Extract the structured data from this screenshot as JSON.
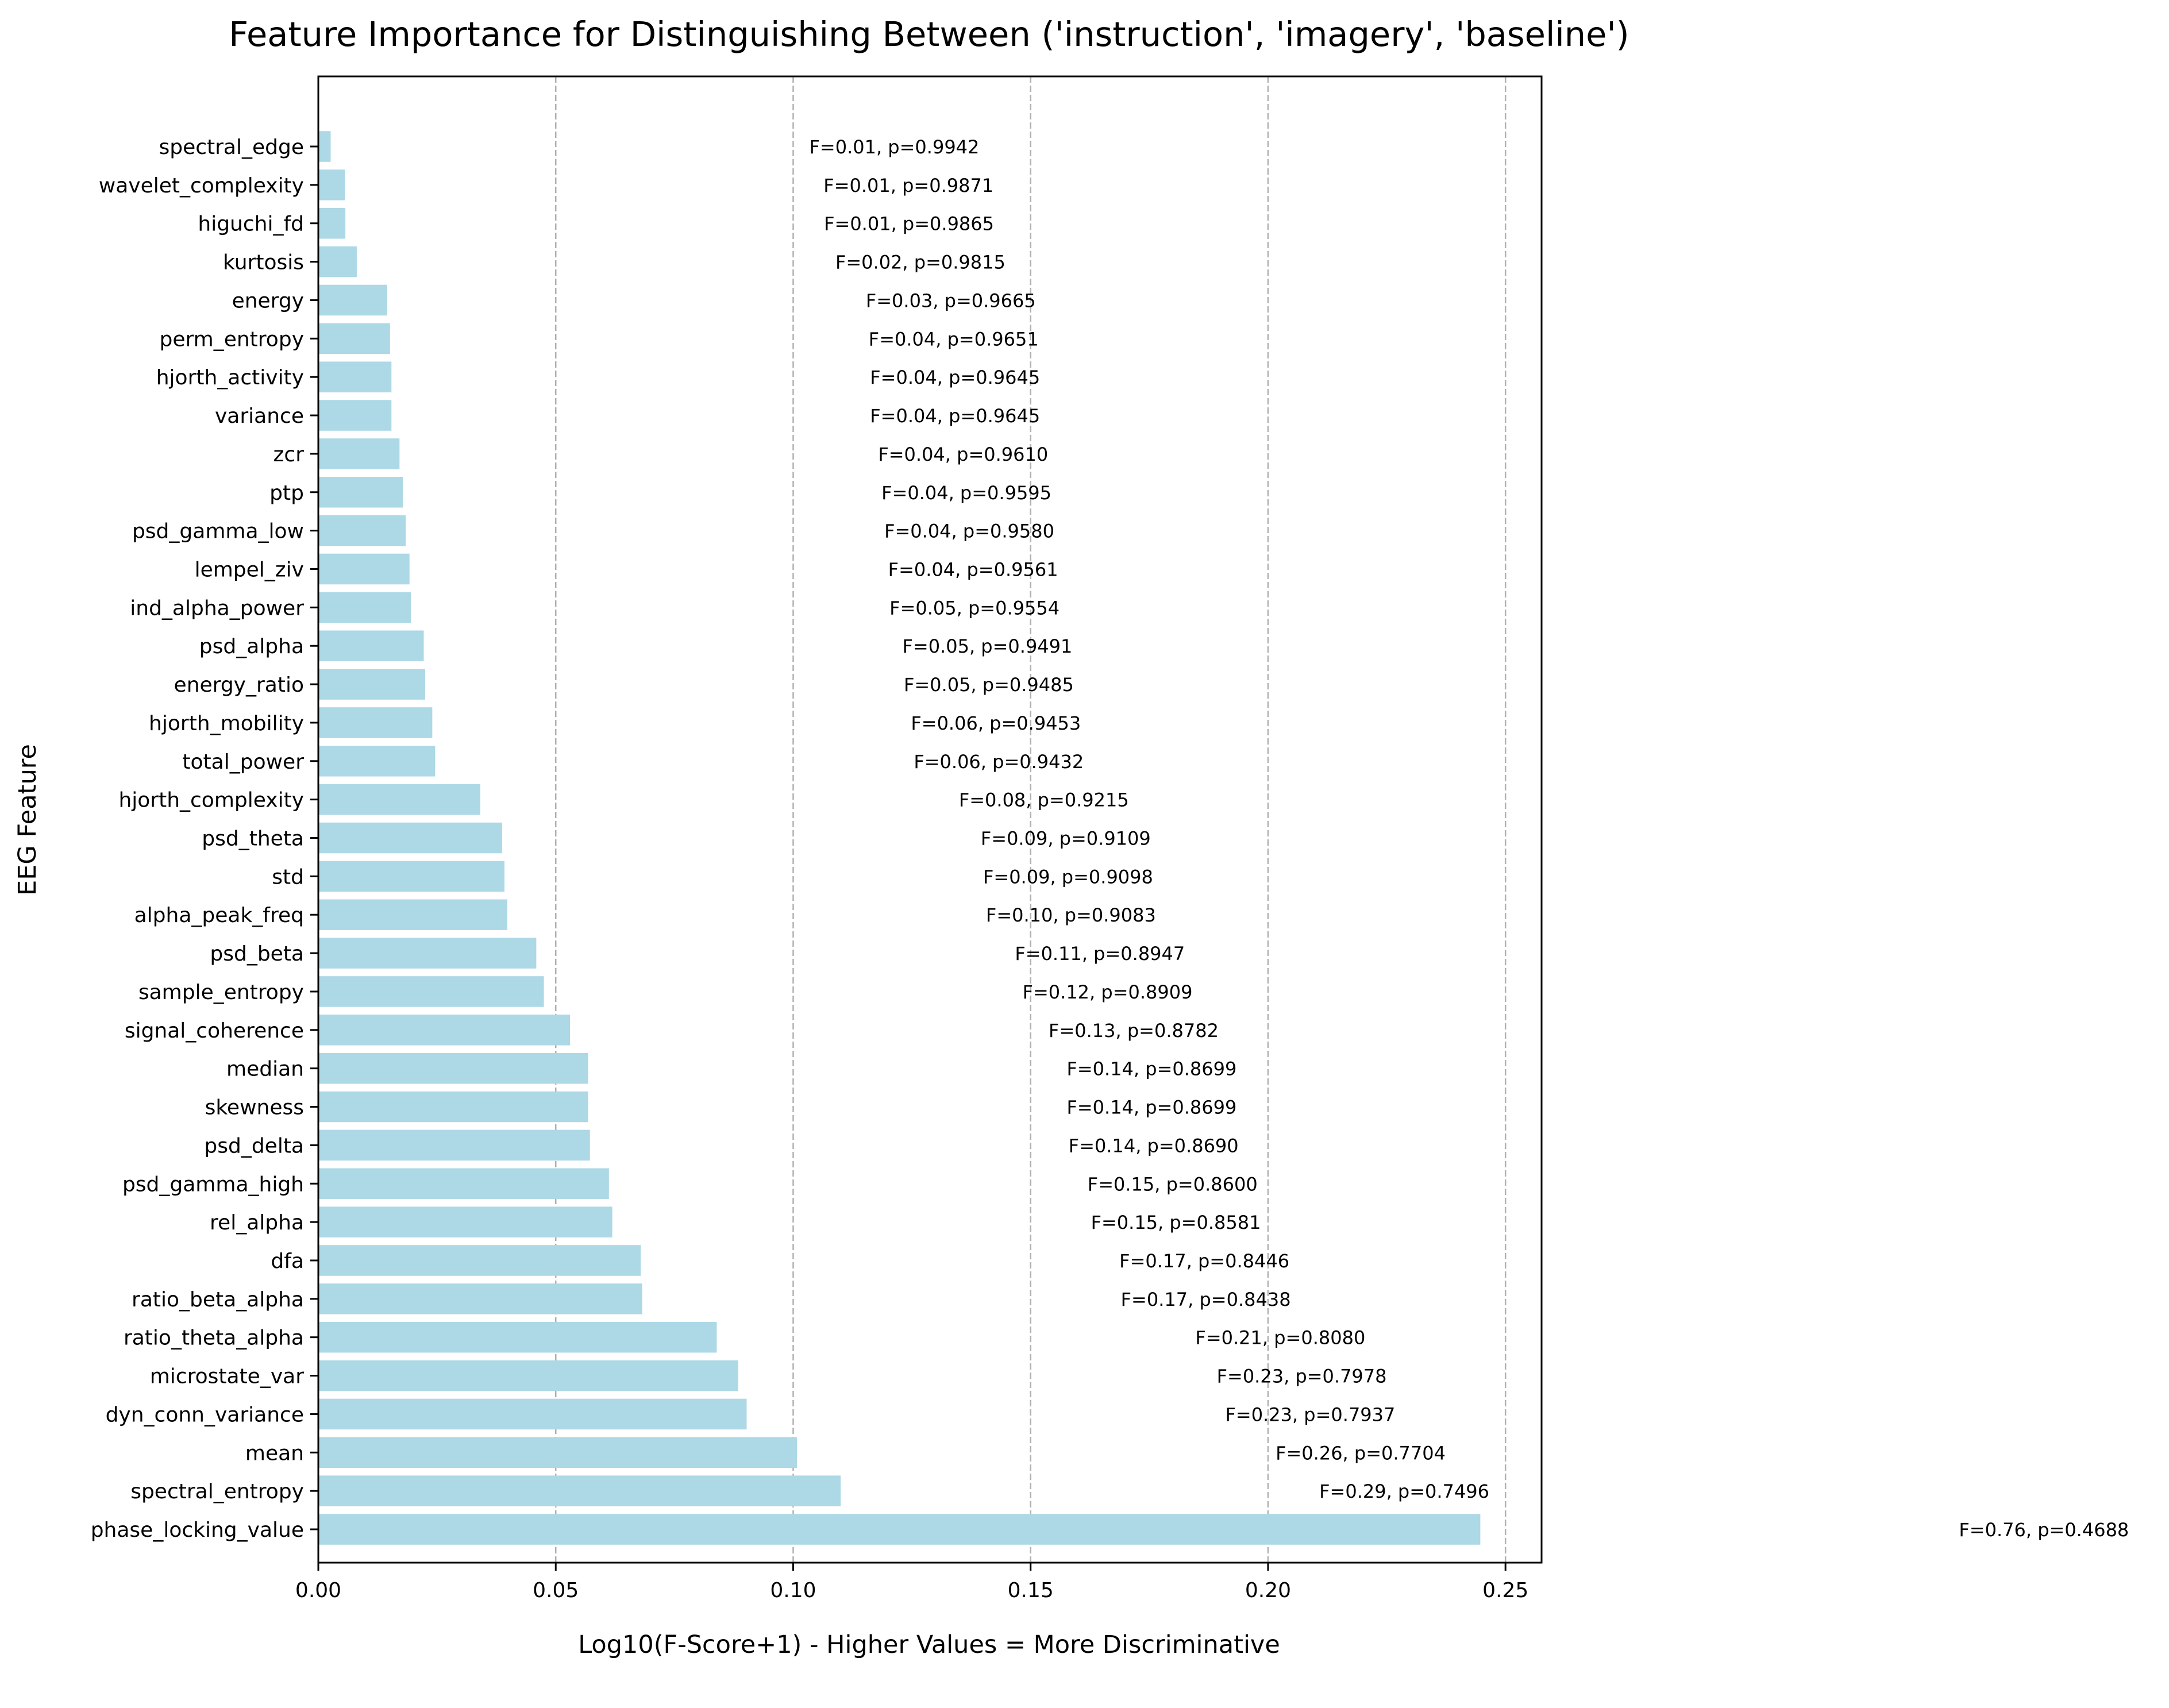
{
  "chart_data": {
    "type": "bar",
    "orientation": "horizontal",
    "title": "Feature Importance for Distinguishing Between ('instruction', 'imagery', 'baseline')",
    "xlabel": "Log10(F-Score+1) - Higher Values = More Discriminative",
    "ylabel": "EEG Feature",
    "xlim": [
      0,
      0.2576
    ],
    "x_ticks": [
      "0.00",
      "0.05",
      "0.10",
      "0.15",
      "0.20",
      "0.25"
    ],
    "grid": "x-dashed",
    "bar_color": "#add8e6",
    "categories": [
      "spectral_edge",
      "wavelet_complexity",
      "higuchi_fd",
      "kurtosis",
      "energy",
      "perm_entropy",
      "hjorth_activity",
      "variance",
      "zcr",
      "ptp",
      "psd_gamma_low",
      "lempel_ziv",
      "ind_alpha_power",
      "psd_alpha",
      "energy_ratio",
      "hjorth_mobility",
      "total_power",
      "hjorth_complexity",
      "psd_theta",
      "std",
      "alpha_peak_freq",
      "psd_beta",
      "sample_entropy",
      "signal_coherence",
      "median",
      "skewness",
      "psd_delta",
      "psd_gamma_high",
      "rel_alpha",
      "dfa",
      "ratio_beta_alpha",
      "ratio_theta_alpha",
      "microstate_var",
      "dyn_conn_variance",
      "mean",
      "spectral_entropy",
      "phase_locking_value"
    ],
    "values": [
      0.0026,
      0.0056,
      0.0057,
      0.0081,
      0.0145,
      0.0151,
      0.0154,
      0.0154,
      0.0171,
      0.0178,
      0.0184,
      0.0192,
      0.0195,
      0.0222,
      0.0225,
      0.024,
      0.0246,
      0.0341,
      0.0387,
      0.0392,
      0.0398,
      0.0459,
      0.0475,
      0.053,
      0.0568,
      0.0568,
      0.0572,
      0.0612,
      0.0619,
      0.0679,
      0.0682,
      0.0839,
      0.0884,
      0.0902,
      0.1008,
      0.11,
      0.2447
    ],
    "annotations": [
      "F=0.01, p=0.9942",
      "F=0.01, p=0.9871",
      "F=0.01, p=0.9865",
      "F=0.02, p=0.9815",
      "F=0.03, p=0.9665",
      "F=0.04, p=0.9651",
      "F=0.04, p=0.9645",
      "F=0.04, p=0.9645",
      "F=0.04, p=0.9610",
      "F=0.04, p=0.9595",
      "F=0.04, p=0.9580",
      "F=0.04, p=0.9561",
      "F=0.05, p=0.9554",
      "F=0.05, p=0.9491",
      "F=0.05, p=0.9485",
      "F=0.06, p=0.9453",
      "F=0.06, p=0.9432",
      "F=0.08, p=0.9215",
      "F=0.09, p=0.9109",
      "F=0.09, p=0.9098",
      "F=0.10, p=0.9083",
      "F=0.11, p=0.8947",
      "F=0.12, p=0.8909",
      "F=0.13, p=0.8782",
      "F=0.14, p=0.8699",
      "F=0.14, p=0.8699",
      "F=0.14, p=0.8690",
      "F=0.15, p=0.8600",
      "F=0.15, p=0.8581",
      "F=0.17, p=0.8446",
      "F=0.17, p=0.8438",
      "F=0.21, p=0.8080",
      "F=0.23, p=0.7978",
      "F=0.23, p=0.7937",
      "F=0.26, p=0.7704",
      "F=0.29, p=0.7496",
      "F=0.76, p=0.4688"
    ]
  }
}
